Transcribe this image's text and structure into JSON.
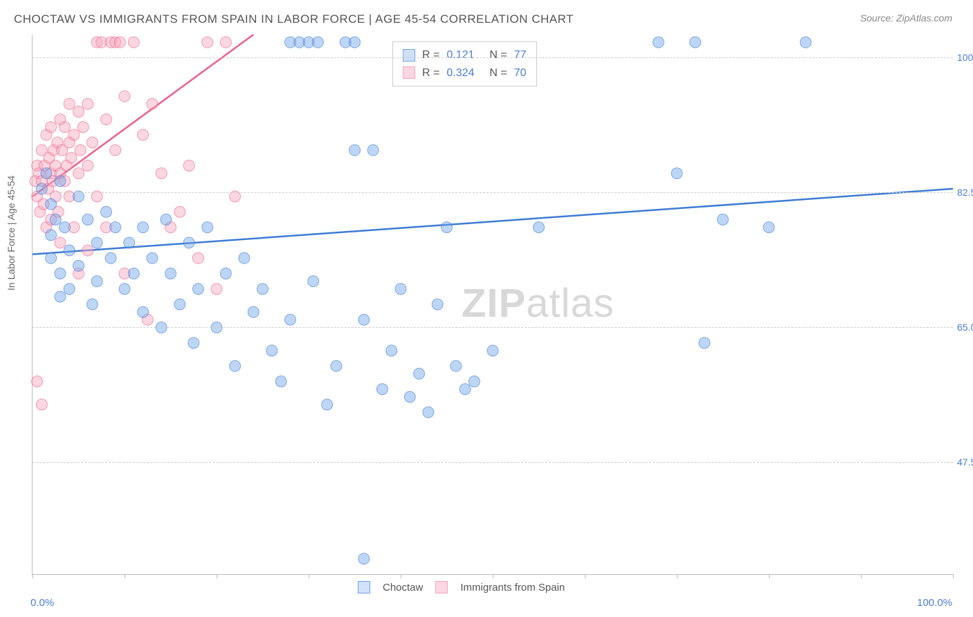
{
  "title": "CHOCTAW VS IMMIGRANTS FROM SPAIN IN LABOR FORCE | AGE 45-54 CORRELATION CHART",
  "source": "Source: ZipAtlas.com",
  "ylabel_text": "In Labor Force | Age 45-54",
  "watermark_a": "ZIP",
  "watermark_b": "atlas",
  "chart": {
    "type": "scatter",
    "background_color": "#ffffff",
    "grid_color": "#cccccc",
    "axis_color": "#bbbbbb",
    "label_color": "#666666",
    "tick_color": "#4a7dd6",
    "xlim": [
      0,
      100
    ],
    "ylim": [
      33,
      103
    ],
    "x_ticks": [
      0,
      10,
      20,
      30,
      40,
      50,
      60,
      70,
      80,
      90,
      100
    ],
    "x_tick_labels": {
      "0": "0.0%",
      "100": "100.0%"
    },
    "y_ticks": [
      {
        "v": 47.5,
        "label": "47.5%"
      },
      {
        "v": 65.0,
        "label": "65.0%"
      },
      {
        "v": 82.5,
        "label": "82.5%"
      },
      {
        "v": 100.0,
        "label": "100.0%"
      }
    ],
    "marker_radius": 8,
    "marker_opacity": 0.45,
    "line_width": 2.5,
    "series": {
      "choctaw": {
        "label": "Choctaw",
        "color": "#6fa4e8",
        "stroke": "#3e7bd4",
        "R": "0.121",
        "N": "77",
        "trend": {
          "x1": 0,
          "y1": 74.5,
          "x2": 100,
          "y2": 83.0
        },
        "points": [
          [
            1,
            83
          ],
          [
            1.5,
            85
          ],
          [
            2,
            81
          ],
          [
            2,
            77
          ],
          [
            2.5,
            79
          ],
          [
            3,
            84
          ],
          [
            3,
            72
          ],
          [
            3.5,
            78
          ],
          [
            4,
            70
          ],
          [
            4,
            75
          ],
          [
            5,
            82
          ],
          [
            5,
            73
          ],
          [
            6,
            79
          ],
          [
            6.5,
            68
          ],
          [
            7,
            76
          ],
          [
            7,
            71
          ],
          [
            8,
            80
          ],
          [
            8.5,
            74
          ],
          [
            9,
            78
          ],
          [
            10,
            70
          ],
          [
            10.5,
            76
          ],
          [
            11,
            72
          ],
          [
            12,
            67
          ],
          [
            12,
            78
          ],
          [
            13,
            74
          ],
          [
            14,
            65
          ],
          [
            14.5,
            79
          ],
          [
            15,
            72
          ],
          [
            16,
            68
          ],
          [
            17,
            76
          ],
          [
            17.5,
            63
          ],
          [
            18,
            70
          ],
          [
            19,
            78
          ],
          [
            20,
            65
          ],
          [
            21,
            72
          ],
          [
            22,
            60
          ],
          [
            23,
            74
          ],
          [
            24,
            67
          ],
          [
            25,
            70
          ],
          [
            26,
            62
          ],
          [
            27,
            58
          ],
          [
            28,
            66
          ],
          [
            28,
            102
          ],
          [
            29,
            102
          ],
          [
            30,
            102
          ],
          [
            30.5,
            71
          ],
          [
            31,
            102
          ],
          [
            32,
            55
          ],
          [
            33,
            60
          ],
          [
            34,
            102
          ],
          [
            35,
            102
          ],
          [
            35,
            88
          ],
          [
            36,
            66
          ],
          [
            37,
            88
          ],
          [
            38,
            57
          ],
          [
            39,
            62
          ],
          [
            40,
            70
          ],
          [
            41,
            56
          ],
          [
            42,
            59
          ],
          [
            43,
            54
          ],
          [
            44,
            68
          ],
          [
            45,
            78
          ],
          [
            46,
            60
          ],
          [
            47,
            57
          ],
          [
            48,
            58
          ],
          [
            50,
            62
          ],
          [
            55,
            78
          ],
          [
            68,
            102
          ],
          [
            70,
            85
          ],
          [
            72,
            102
          ],
          [
            73,
            63
          ],
          [
            75,
            79
          ],
          [
            80,
            78
          ],
          [
            84,
            102
          ],
          [
            36,
            35
          ],
          [
            2,
            74
          ],
          [
            3,
            69
          ]
        ]
      },
      "spain": {
        "label": "Immigrants from Spain",
        "color": "#f7a6bd",
        "stroke": "#ef5f8b",
        "R": "0.324",
        "N": "70",
        "trend": {
          "x1": 0,
          "y1": 82.0,
          "x2": 24,
          "y2": 103.0
        },
        "points": [
          [
            0.3,
            84
          ],
          [
            0.5,
            86
          ],
          [
            0.5,
            82
          ],
          [
            0.7,
            85
          ],
          [
            0.8,
            80
          ],
          [
            1,
            88
          ],
          [
            1,
            84
          ],
          [
            1.2,
            81
          ],
          [
            1.3,
            86
          ],
          [
            1.5,
            78
          ],
          [
            1.5,
            90
          ],
          [
            1.7,
            83
          ],
          [
            1.8,
            87
          ],
          [
            2,
            85
          ],
          [
            2,
            79
          ],
          [
            2,
            91
          ],
          [
            2.2,
            84
          ],
          [
            2.3,
            88
          ],
          [
            2.5,
            82
          ],
          [
            2.5,
            86
          ],
          [
            2.7,
            89
          ],
          [
            2.8,
            80
          ],
          [
            3,
            92
          ],
          [
            3,
            85
          ],
          [
            3,
            76
          ],
          [
            3.2,
            88
          ],
          [
            3.5,
            84
          ],
          [
            3.5,
            91
          ],
          [
            3.7,
            86
          ],
          [
            4,
            89
          ],
          [
            4,
            82
          ],
          [
            4,
            94
          ],
          [
            4.2,
            87
          ],
          [
            4.5,
            90
          ],
          [
            4.5,
            78
          ],
          [
            5,
            93
          ],
          [
            5,
            85
          ],
          [
            5,
            72
          ],
          [
            5.2,
            88
          ],
          [
            5.5,
            91
          ],
          [
            6,
            94
          ],
          [
            6,
            86
          ],
          [
            6,
            75
          ],
          [
            6.5,
            89
          ],
          [
            7,
            102
          ],
          [
            7,
            82
          ],
          [
            7.5,
            102
          ],
          [
            8,
            92
          ],
          [
            8,
            78
          ],
          [
            8.5,
            102
          ],
          [
            9,
            102
          ],
          [
            9,
            88
          ],
          [
            9.5,
            102
          ],
          [
            10,
            95
          ],
          [
            10,
            72
          ],
          [
            11,
            102
          ],
          [
            12,
            90
          ],
          [
            12.5,
            66
          ],
          [
            13,
            94
          ],
          [
            14,
            85
          ],
          [
            15,
            78
          ],
          [
            16,
            80
          ],
          [
            17,
            86
          ],
          [
            18,
            74
          ],
          [
            19,
            102
          ],
          [
            20,
            70
          ],
          [
            21,
            102
          ],
          [
            22,
            82
          ],
          [
            0.5,
            58
          ],
          [
            1,
            55
          ]
        ]
      }
    }
  },
  "legend_top_rows": [
    {
      "swatch_fill": "#cfe0f7",
      "swatch_border": "#6fa4e8",
      "R": "0.121",
      "N": "77"
    },
    {
      "swatch_fill": "#fcd6e2",
      "swatch_border": "#f7a6bd",
      "R": "0.324",
      "N": "70"
    }
  ],
  "legend_bottom": [
    {
      "swatch_fill": "#cfe0f7",
      "swatch_border": "#6fa4e8",
      "label": "Choctaw"
    },
    {
      "swatch_fill": "#fcd6e2",
      "swatch_border": "#f7a6bd",
      "label": "Immigrants from Spain"
    }
  ]
}
